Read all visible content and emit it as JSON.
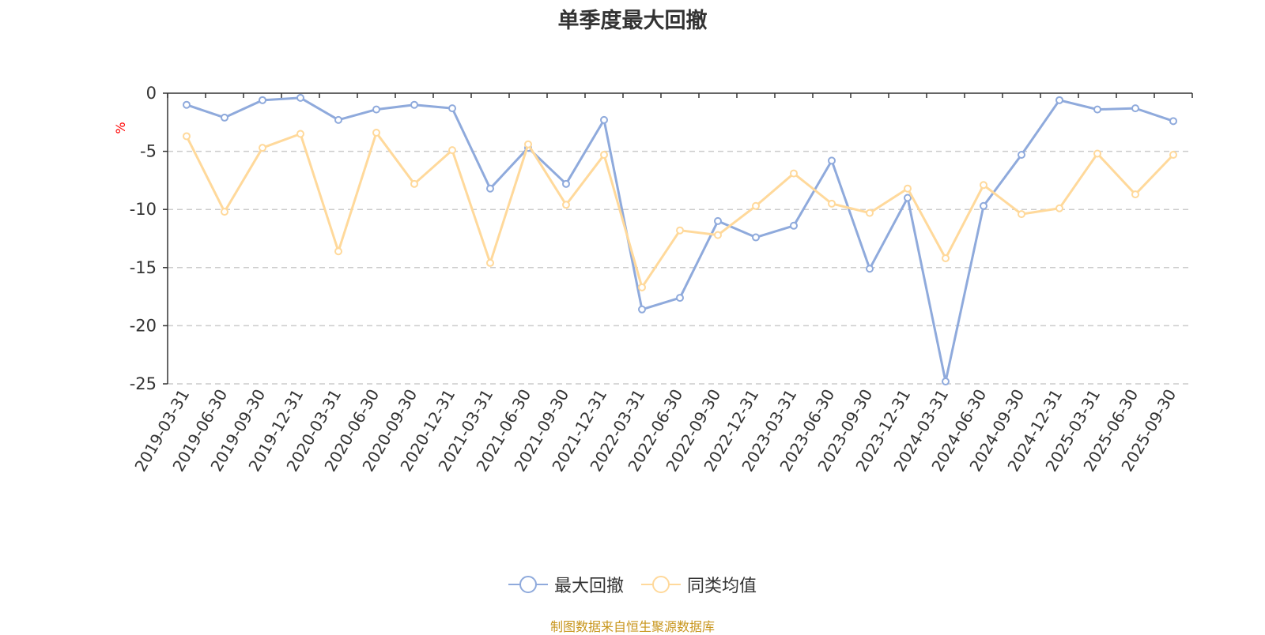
{
  "chart_data": {
    "type": "line",
    "title": "单季度最大回撤",
    "ylabel": "%",
    "ylim": [
      -25,
      0
    ],
    "yticks": [
      0,
      -5,
      -10,
      -15,
      -20,
      -25
    ],
    "grid": true,
    "legend_position": "bottom-center",
    "categories": [
      "2019-03-31",
      "2019-06-30",
      "2019-09-30",
      "2019-12-31",
      "2020-03-31",
      "2020-06-30",
      "2020-09-30",
      "2020-12-31",
      "2021-03-31",
      "2021-06-30",
      "2021-09-30",
      "2021-12-31",
      "2022-03-31",
      "2022-06-30",
      "2022-09-30",
      "2022-12-31",
      "2023-03-31",
      "2023-06-30",
      "2023-09-30",
      "2023-12-31",
      "2024-03-31",
      "2024-06-30",
      "2024-09-30",
      "2024-12-31",
      "2025-03-31",
      "2025-06-30",
      "2025-09-30"
    ],
    "series": [
      {
        "name": "最大回撤",
        "color": "#8FAADC",
        "values": [
          -1.0,
          -2.1,
          -0.6,
          -0.4,
          -2.3,
          -1.4,
          -1.0,
          -1.3,
          -8.2,
          -4.7,
          -7.8,
          -2.3,
          -18.6,
          -17.6,
          -11.0,
          -12.4,
          -11.4,
          -5.8,
          -15.1,
          -9.0,
          -24.8,
          -9.7,
          -5.3,
          -0.6,
          -1.4,
          -1.3,
          -2.4
        ]
      },
      {
        "name": "同类均值",
        "color": "#FFD99B",
        "values": [
          -3.7,
          -10.2,
          -4.7,
          -3.5,
          -13.6,
          -3.4,
          -7.8,
          -4.9,
          -14.6,
          -4.4,
          -9.6,
          -5.3,
          -16.7,
          -11.8,
          -12.2,
          -9.7,
          -6.9,
          -9.5,
          -10.3,
          -8.2,
          -14.2,
          -7.9,
          -10.4,
          -9.9,
          -5.2,
          -8.7,
          -5.3
        ]
      }
    ]
  },
  "footer": {
    "source": "制图数据来自恒生聚源数据库",
    "source_color": "#C8961E"
  }
}
